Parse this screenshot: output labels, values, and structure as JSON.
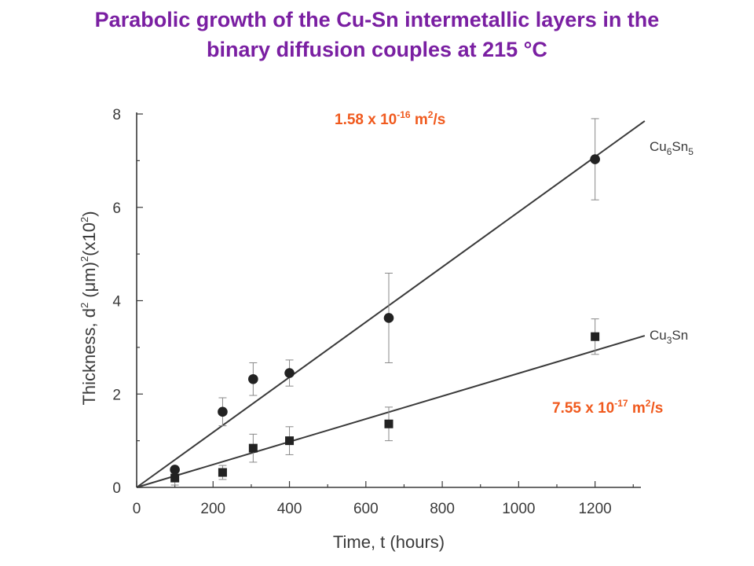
{
  "slide": {
    "title_line1": "Parabolic growth of the Cu-Sn intermetallic layers in the",
    "title_line2": "binary diffusion couples at 215 °C"
  },
  "chart_data": {
    "type": "scatter",
    "xlabel": "Time, t (hours)",
    "ylabel": {
      "prefix": "Thickness, d",
      "sq1": "2",
      "mid": " (μm)",
      "sq2": "2",
      "mult": "(x10",
      "sq3": "2",
      "close": ")"
    },
    "xlim": [
      0,
      1320
    ],
    "ylim": [
      0,
      8
    ],
    "x_ticks": [
      0,
      200,
      400,
      600,
      800,
      1000,
      1200
    ],
    "y_ticks": [
      0,
      2,
      4,
      6,
      8
    ],
    "grid": false,
    "series": [
      {
        "name": "Cu6Sn5",
        "label_base": "Cu",
        "label_sub1": "6",
        "label_mid": "Sn",
        "label_sub2": "5",
        "marker": "circle",
        "points": [
          {
            "x": 100,
            "y": 0.38,
            "err": null
          },
          {
            "x": 225,
            "y": 1.62,
            "err": 0.3
          },
          {
            "x": 305,
            "y": 2.32,
            "err": 0.35
          },
          {
            "x": 400,
            "y": 2.45,
            "err": 0.28
          },
          {
            "x": 660,
            "y": 3.63,
            "err": 0.96
          },
          {
            "x": 1200,
            "y": 7.03,
            "err": 0.87
          }
        ],
        "fit_end": [
          1330,
          7.85
        ],
        "coefficient": {
          "base": "1.58 x 10",
          "exp": "-16",
          "unit": " m",
          "unit_exp": "2",
          "unit_tail": "/s"
        }
      },
      {
        "name": "Cu3Sn",
        "label_base": "Cu",
        "label_sub1": "3",
        "label_mid": "Sn",
        "label_sub2": "",
        "marker": "square",
        "points": [
          {
            "x": 100,
            "y": 0.2,
            "err": 0.15
          },
          {
            "x": 225,
            "y": 0.32,
            "err": 0.15
          },
          {
            "x": 305,
            "y": 0.84,
            "err": 0.3
          },
          {
            "x": 400,
            "y": 1.0,
            "err": 0.3
          },
          {
            "x": 660,
            "y": 1.36,
            "err": 0.36
          },
          {
            "x": 1200,
            "y": 3.23,
            "err": 0.38
          }
        ],
        "fit_end": [
          1330,
          3.25
        ],
        "coefficient": {
          "base": "7.55 x 10",
          "exp": "-17",
          "unit": " m",
          "unit_exp": "2",
          "unit_tail": "/s"
        }
      }
    ],
    "colors": {
      "line": "#3a3a3a",
      "title": "#7a1fa2",
      "coefficient": "#f05a1e"
    }
  }
}
